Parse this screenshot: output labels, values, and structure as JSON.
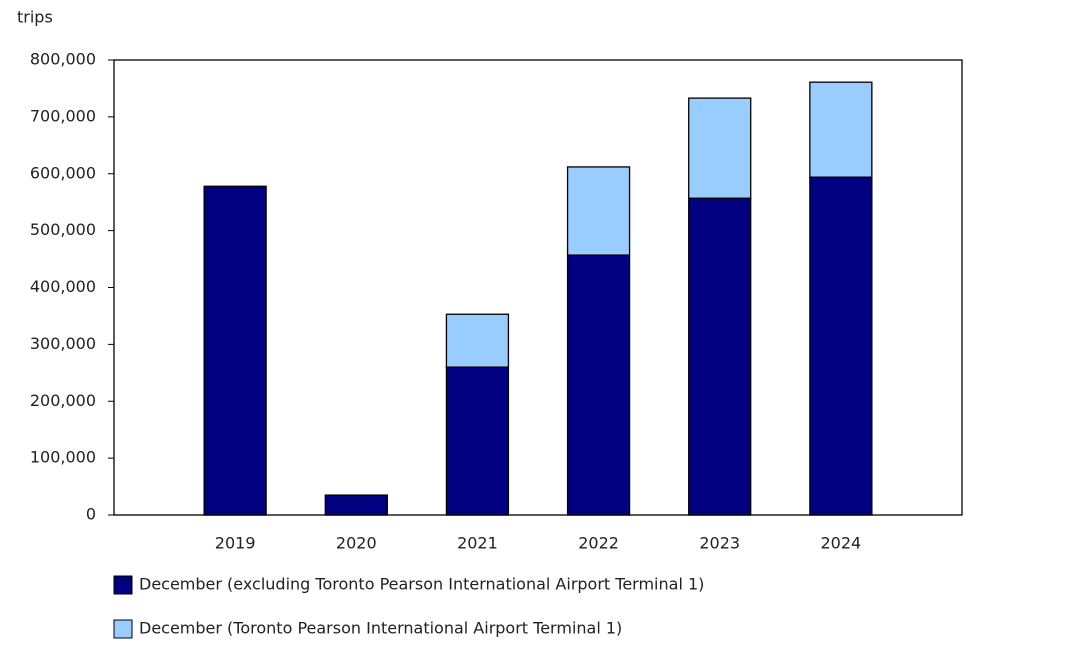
{
  "chart_data": {
    "type": "stacked_bar",
    "y_label": "trips",
    "categories": [
      "2019",
      "2020",
      "2021",
      "2022",
      "2023",
      "2024"
    ],
    "series": [
      {
        "name": "December (excluding Toronto Pearson International Airport Terminal 1)",
        "color": "#000080",
        "values": [
          578000,
          35000,
          260000,
          457000,
          557000,
          594000
        ]
      },
      {
        "name": "December (Toronto Pearson International Airport Terminal 1)",
        "color": "#99ccff",
        "values": [
          null,
          null,
          93000,
          155000,
          176000,
          167000
        ]
      }
    ],
    "ylim": [
      0,
      800000
    ],
    "yticks": [
      0,
      {
        "value": 100000,
        "label": "100,000"
      },
      {
        "value": 200000,
        "label": "200,000"
      },
      {
        "value": 300000,
        "label": "300,000"
      },
      {
        "value": 400000,
        "label": "400,000"
      },
      {
        "value": 500000,
        "label": "500,000"
      },
      {
        "value": 600000,
        "label": "600,000"
      },
      {
        "value": 700000,
        "label": "700,000"
      },
      {
        "value": 800000,
        "label": "800,000"
      }
    ]
  }
}
